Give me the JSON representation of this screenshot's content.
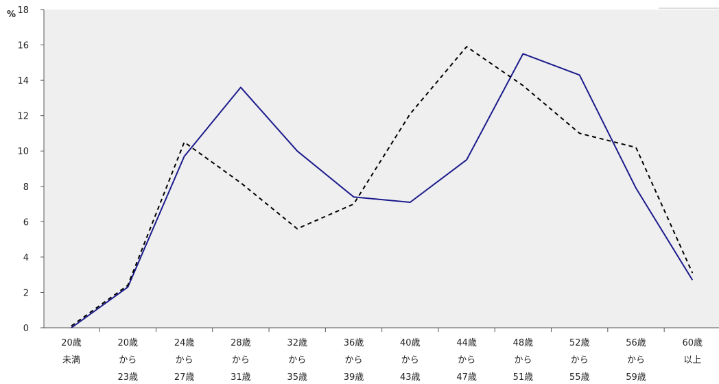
{
  "chart_data": {
    "type": "line",
    "ylabel": "%",
    "ylim": [
      0,
      18
    ],
    "yticks": [
      "0",
      "2",
      "4",
      "6",
      "8",
      "10",
      "12",
      "14",
      "16",
      "18"
    ],
    "categories": [
      [
        "20歳",
        "未満"
      ],
      [
        "20歳",
        "から",
        "23歳"
      ],
      [
        "24歳",
        "から",
        "27歳"
      ],
      [
        "28歳",
        "から",
        "31歳"
      ],
      [
        "32歳",
        "から",
        "35歳"
      ],
      [
        "36歳",
        "から",
        "39歳"
      ],
      [
        "40歳",
        "から",
        "43歳"
      ],
      [
        "44歳",
        "から",
        "47歳"
      ],
      [
        "48歳",
        "から",
        "51歳"
      ],
      [
        "52歳",
        "から",
        "55歳"
      ],
      [
        "56歳",
        "から",
        "59歳"
      ],
      [
        "60歳",
        "以上"
      ]
    ],
    "series": [
      {
        "style": "solid",
        "color": "#1a1a8c",
        "values": [
          0.0,
          2.3,
          9.7,
          13.6,
          10.0,
          7.4,
          7.1,
          9.5,
          15.5,
          14.3,
          7.9,
          2.7
        ]
      },
      {
        "style": "dashed",
        "color": "#000000",
        "values": [
          0.1,
          2.4,
          10.5,
          8.2,
          5.6,
          7.0,
          12.1,
          15.9,
          13.7,
          11.0,
          10.2,
          3.1
        ]
      }
    ],
    "grid": false,
    "plot_background": "#efefef"
  }
}
